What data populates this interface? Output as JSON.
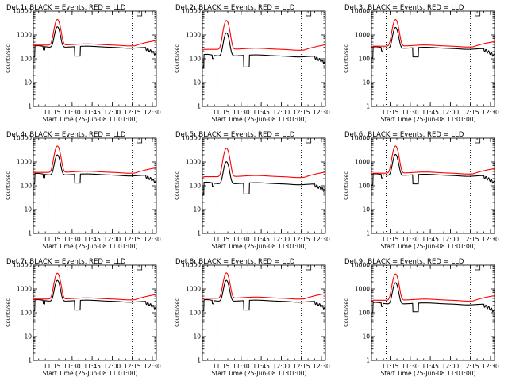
{
  "chart_data": {
    "type": "line",
    "y_scale": "log",
    "ylim": [
      1,
      10000
    ],
    "xlim_minutes_after_start": [
      0,
      92
    ],
    "x_tick_minutes": [
      14,
      29,
      44,
      59,
      74,
      89
    ],
    "x_tick_labels": [
      "11:15",
      "11:30",
      "11:45",
      "12:00",
      "12:15",
      "12:30"
    ],
    "y_tick_values": [
      1,
      10,
      100,
      1000,
      10000
    ],
    "y_tick_labels": [
      "1",
      "10",
      "100",
      "1000",
      "10000"
    ],
    "ylabel": "Counts/sec",
    "xlabel": "Start Time (25-Jun-08 11:01:00)",
    "series_names": [
      "Events",
      "LLD"
    ],
    "series_colors": {
      "events": "#000000",
      "lld": "#ff0000"
    },
    "markers_minutes": [
      11,
      74
    ],
    "panels": [
      {
        "title": "Det 1r BLACK = Events, RED = LLD",
        "baseline_events": 300,
        "lld_factor": 1.25,
        "peak_events": 1900,
        "peak_lld": 4100,
        "dip_events": 130
      },
      {
        "title": "Det 2r BLACK = Events, RED = LLD",
        "baseline_events": 130,
        "lld_factor": 1.9,
        "peak_events": 1100,
        "peak_lld": 3800,
        "dip_events": 45
      },
      {
        "title": "Det 3r BLACK = Events, RED = LLD",
        "baseline_events": 270,
        "lld_factor": 1.25,
        "peak_events": 1800,
        "peak_lld": 4100,
        "dip_events": 120
      },
      {
        "title": "Det 4r BLACK = Events, RED = LLD",
        "baseline_events": 280,
        "lld_factor": 1.3,
        "peak_events": 1700,
        "peak_lld": 4300,
        "dip_events": 130
      },
      {
        "title": "Det 5r BLACK = Events, RED = LLD",
        "baseline_events": 120,
        "lld_factor": 2.0,
        "peak_events": 900,
        "peak_lld": 3500,
        "dip_events": 45
      },
      {
        "title": "Det 6r BLACK = Events, RED = LLD",
        "baseline_events": 270,
        "lld_factor": 1.25,
        "peak_events": 1800,
        "peak_lld": 4300,
        "dip_events": 120
      },
      {
        "title": "Det 7r BLACK = Events, RED = LLD",
        "baseline_events": 300,
        "lld_factor": 1.25,
        "peak_events": 2000,
        "peak_lld": 4200,
        "dip_events": 130
      },
      {
        "title": "Det 8r BLACK = Events, RED = LLD",
        "baseline_events": 300,
        "lld_factor": 1.35,
        "peak_events": 2000,
        "peak_lld": 4300,
        "dip_events": 130
      },
      {
        "title": "Det 9r BLACK = Events, RED = LLD",
        "baseline_events": 230,
        "lld_factor": 1.45,
        "peak_events": 1600,
        "peak_lld": 3900,
        "dip_events": 110
      }
    ]
  }
}
